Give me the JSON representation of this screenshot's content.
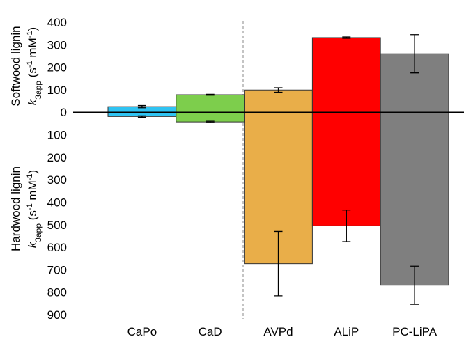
{
  "chart_data": {
    "type": "bar",
    "y_label_top": {
      "line1": "Softwood lignin",
      "line2": [
        "k",
        "3app",
        " (s",
        "-1",
        " mM",
        "-1",
        ")"
      ]
    },
    "y_label_bottom": {
      "line1": "Hardwood lignin",
      "line2": [
        "k",
        "3app",
        " (s",
        "-1",
        " mM",
        "-1",
        ")"
      ]
    },
    "categories": [
      "CaPo",
      "CaD",
      "AVPd",
      "ALiP",
      "PC-LiPA"
    ],
    "colors": [
      "#2fc3f2",
      "#7dce4c",
      "#e9ae49",
      "#ff0000",
      "#7f7f7f"
    ],
    "series": [
      {
        "values": [
          25,
          78,
          99,
          332,
          260
        ],
        "errors": [
          5,
          2,
          10,
          3,
          85
        ]
      },
      {
        "values": [
          -19,
          -43,
          -673,
          -505,
          -769
        ],
        "errors": [
          3,
          3,
          143,
          70,
          85
        ]
      }
    ],
    "ylim": [
      -900,
      400
    ],
    "yticks": [
      {
        "value": -900,
        "label": "900"
      },
      {
        "value": -800,
        "label": "800"
      },
      {
        "value": -700,
        "label": "700"
      },
      {
        "value": -600,
        "label": "600"
      },
      {
        "value": -500,
        "label": "500"
      },
      {
        "value": -400,
        "label": "400"
      },
      {
        "value": -300,
        "label": "300"
      },
      {
        "value": -200,
        "label": "200"
      },
      {
        "value": -100,
        "label": "100"
      },
      0,
      100,
      200,
      300,
      400
    ]
  }
}
